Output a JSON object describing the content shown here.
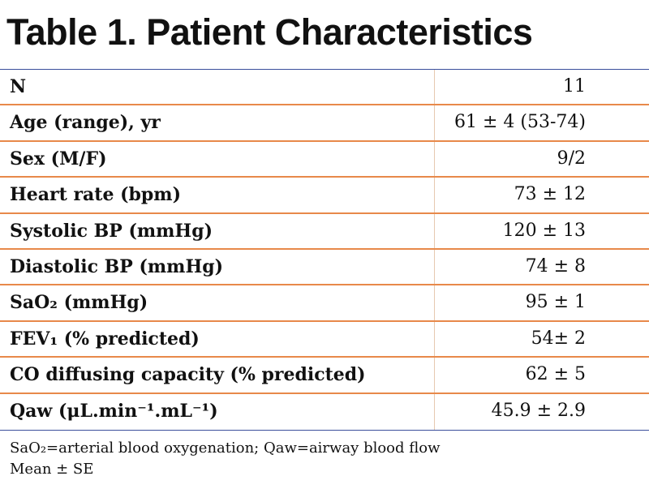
{
  "header": {
    "title": "Table 1. Patient Characteristics"
  },
  "table": {
    "rows": [
      [
        "N",
        "11"
      ],
      [
        "Age (range), yr",
        "61 ± 4 (53-74)"
      ],
      [
        "Sex (M/F)",
        "9/2"
      ],
      [
        "Heart rate (bpm)",
        "73 ± 12"
      ],
      [
        "Systolic BP (mmHg)",
        "120 ± 13"
      ],
      [
        "Diastolic BP (mmHg)",
        "74 ± 8"
      ],
      [
        "SaO₂ (mmHg)",
        "95 ± 1"
      ],
      [
        "FEV₁ (% predicted)",
        "54± 2"
      ],
      [
        "CO diffusing capacity (% predicted)",
        "62 ± 5"
      ],
      [
        "Qaw (μL.min⁻¹.mL⁻¹)",
        "45.9 ± 2.9"
      ]
    ]
  },
  "footnotes": [
    "SaO₂=arterial blood oxygenation; Qaw=airway blood flow",
    "Mean ± SE"
  ]
}
